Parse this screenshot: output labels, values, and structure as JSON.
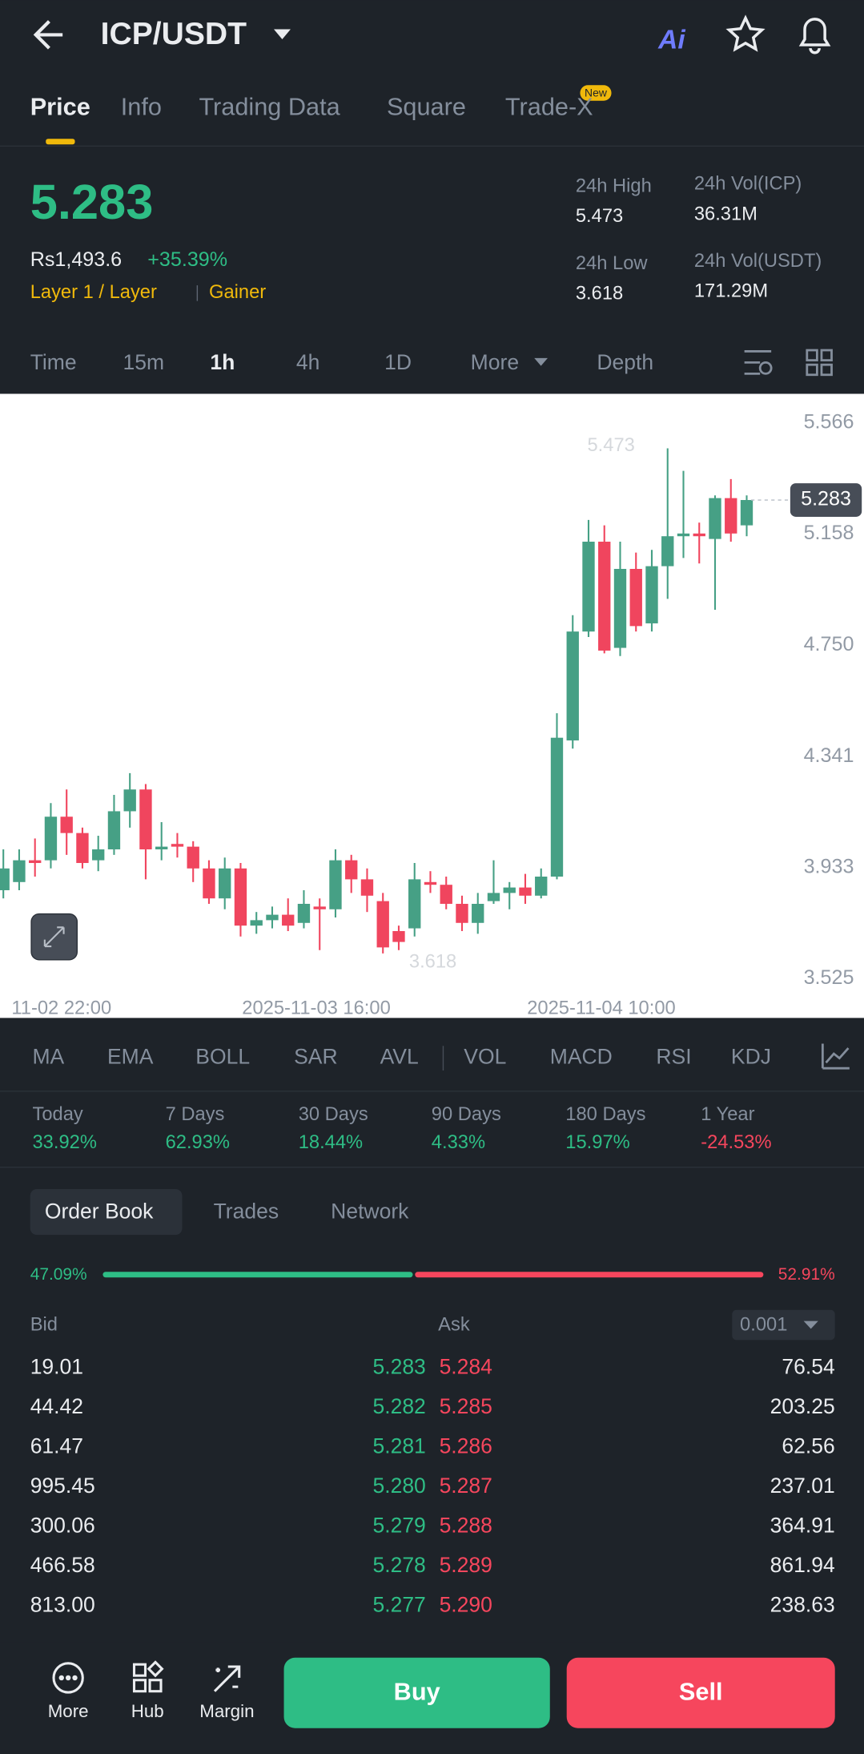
{
  "header": {
    "pair": "ICP/USDT"
  },
  "tabs": [
    "Price",
    "Info",
    "Trading Data",
    "Square",
    "Trade-X"
  ],
  "new_badge": "New",
  "ticker": {
    "price": "5.283",
    "fiat": "Rs1,493.6",
    "change": "+35.39%",
    "tags": [
      "Layer 1 / Layer",
      "Gainer"
    ],
    "stats": [
      {
        "label": "24h High",
        "value": "5.473"
      },
      {
        "label": "24h Vol(ICP)",
        "value": "36.31M"
      },
      {
        "label": "24h Low",
        "value": "3.618"
      },
      {
        "label": "24h Vol(USDT)",
        "value": "171.29M"
      }
    ]
  },
  "intervals": [
    "Time",
    "15m",
    "1h",
    "4h",
    "1D",
    "More",
    "Depth"
  ],
  "chart": {
    "type": "candlestick",
    "ylim": [
      3.381,
      5.673
    ],
    "yticks": [
      5.566,
      5.158,
      {
        "value": 4.75,
        "label": "4.750"
      },
      4.341,
      3.933,
      3.525
    ],
    "x_labels": [
      "11-02 22:00",
      "2025-11-03 16:00",
      "2025-11-04 10:00"
    ],
    "high_label": 5.473,
    "low_label": 3.618,
    "current": 5.283,
    "candles": [
      [
        3.85,
        4.0,
        3.82,
        3.93
      ],
      [
        3.88,
        4.0,
        3.85,
        3.96
      ],
      [
        3.96,
        4.04,
        3.9,
        3.95
      ],
      [
        3.96,
        4.17,
        3.93,
        4.12
      ],
      [
        4.12,
        4.22,
        3.98,
        4.06
      ],
      [
        4.06,
        4.08,
        3.93,
        3.95
      ],
      [
        3.96,
        4.05,
        3.92,
        4.0
      ],
      [
        4.0,
        4.2,
        3.98,
        4.14
      ],
      [
        4.14,
        4.28,
        4.08,
        4.22
      ],
      [
        4.22,
        4.24,
        3.89,
        4.0
      ],
      [
        4.0,
        4.1,
        3.96,
        4.01
      ],
      [
        4.02,
        4.06,
        3.97,
        4.01
      ],
      [
        4.01,
        4.03,
        3.88,
        3.93
      ],
      [
        3.93,
        3.96,
        3.8,
        3.82
      ],
      [
        3.82,
        3.97,
        3.78,
        3.93
      ],
      [
        3.93,
        3.95,
        3.68,
        3.72
      ],
      [
        3.72,
        3.77,
        3.69,
        3.74
      ],
      [
        3.74,
        3.79,
        3.71,
        3.76
      ],
      [
        3.76,
        3.82,
        3.7,
        3.72
      ],
      [
        3.73,
        3.85,
        3.71,
        3.8
      ],
      [
        3.79,
        3.82,
        3.63,
        3.78
      ],
      [
        3.78,
        4.0,
        3.75,
        3.96
      ],
      [
        3.96,
        3.98,
        3.84,
        3.89
      ],
      [
        3.89,
        3.93,
        3.77,
        3.83
      ],
      [
        3.81,
        3.84,
        3.618,
        3.64
      ],
      [
        3.7,
        3.72,
        3.63,
        3.66
      ],
      [
        3.71,
        3.95,
        3.68,
        3.89
      ],
      [
        3.88,
        3.92,
        3.84,
        3.87
      ],
      [
        3.87,
        3.9,
        3.78,
        3.8
      ],
      [
        3.8,
        3.83,
        3.7,
        3.73
      ],
      [
        3.73,
        3.84,
        3.69,
        3.8
      ],
      [
        3.81,
        3.96,
        3.8,
        3.84
      ],
      [
        3.84,
        3.88,
        3.78,
        3.86
      ],
      [
        3.86,
        3.91,
        3.8,
        3.83
      ],
      [
        3.83,
        3.93,
        3.82,
        3.9
      ],
      [
        3.9,
        4.5,
        3.89,
        4.41
      ],
      [
        4.4,
        4.86,
        4.37,
        4.8
      ],
      [
        4.8,
        5.21,
        4.78,
        5.13
      ],
      [
        5.13,
        5.19,
        4.72,
        4.73
      ],
      [
        4.74,
        5.13,
        4.71,
        5.03
      ],
      [
        5.03,
        5.09,
        4.8,
        4.82
      ],
      [
        4.83,
        5.1,
        4.8,
        5.04
      ],
      [
        5.04,
        5.473,
        4.92,
        5.15
      ],
      [
        5.15,
        5.39,
        5.07,
        5.16
      ],
      [
        5.16,
        5.2,
        5.05,
        5.15
      ],
      [
        5.14,
        5.3,
        4.88,
        5.29
      ],
      [
        5.29,
        5.36,
        5.13,
        5.16
      ],
      [
        5.19,
        5.3,
        5.15,
        5.283
      ]
    ]
  },
  "indicators": [
    "MA",
    "EMA",
    "BOLL",
    "SAR",
    "AVL",
    "VOL",
    "MACD",
    "RSI",
    "KDJ"
  ],
  "performance": [
    {
      "label": "Today",
      "value": "33.92%"
    },
    {
      "label": "7 Days",
      "value": "62.93%"
    },
    {
      "label": "30 Days",
      "value": "18.44%"
    },
    {
      "label": "90 Days",
      "value": "4.33%"
    },
    {
      "label": "180 Days",
      "value": "15.97%"
    },
    {
      "label": "1 Year",
      "value": "-24.53%"
    }
  ],
  "orderbook_tabs": [
    "Order Book",
    "Trades",
    "Network"
  ],
  "ratio": {
    "bid": {
      "value": 47.09,
      "label": "47.09%"
    },
    "ask": {
      "value": 52.91,
      "label": "52.91%"
    }
  },
  "book": {
    "bid_header": "Bid",
    "ask_header": "Ask",
    "precision": "0.001",
    "rows": [
      [
        "19.01",
        "5.283",
        "5.284",
        "76.54"
      ],
      [
        "44.42",
        "5.282",
        "5.285",
        "203.25"
      ],
      [
        "61.47",
        "5.281",
        "5.286",
        "62.56"
      ],
      [
        "995.45",
        "5.280",
        "5.287",
        "237.01"
      ],
      [
        "300.06",
        "5.279",
        "5.288",
        "364.91"
      ],
      [
        "466.58",
        "5.278",
        "5.289",
        "861.94"
      ],
      [
        "813.00",
        "5.277",
        "5.290",
        "238.63"
      ]
    ]
  },
  "bottom": {
    "nav": [
      "More",
      "Hub",
      "Margin"
    ],
    "buy": "Buy",
    "sell": "Sell"
  }
}
